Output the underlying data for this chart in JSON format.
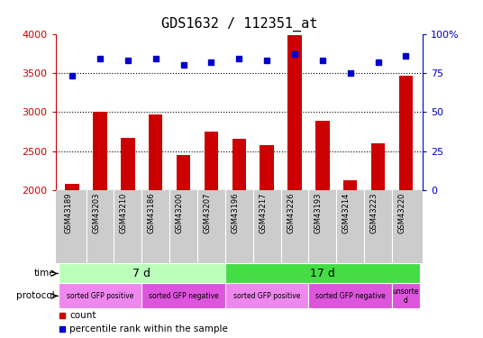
{
  "title": "GDS1632 / 112351_at",
  "samples": [
    "GSM43189",
    "GSM43203",
    "GSM43210",
    "GSM43186",
    "GSM43200",
    "GSM43207",
    "GSM43196",
    "GSM43217",
    "GSM43226",
    "GSM43193",
    "GSM43214",
    "GSM43223",
    "GSM43220"
  ],
  "counts": [
    2090,
    3000,
    2670,
    2970,
    2450,
    2750,
    2660,
    2580,
    3980,
    2890,
    2130,
    2600,
    3460
  ],
  "percentile_ranks": [
    73,
    84,
    83,
    84,
    80,
    82,
    84,
    83,
    87,
    83,
    75,
    82,
    86
  ],
  "bar_color": "#cc0000",
  "dot_color": "#0000cc",
  "ylim_left": [
    2000,
    4000
  ],
  "ylim_right": [
    0,
    100
  ],
  "yticks_left": [
    2000,
    2500,
    3000,
    3500,
    4000
  ],
  "yticks_right": [
    0,
    25,
    50,
    75,
    100
  ],
  "grid_lines": [
    2500,
    3000,
    3500
  ],
  "time_labels": [
    {
      "label": "7 d",
      "start": 0,
      "end": 5,
      "color": "#bbffbb"
    },
    {
      "label": "17 d",
      "start": 6,
      "end": 12,
      "color": "#44dd44"
    }
  ],
  "protocol_labels": [
    {
      "label": "sorted GFP positive",
      "start": 0,
      "end": 2,
      "color": "#ee88ee"
    },
    {
      "label": "sorted GFP negative",
      "start": 3,
      "end": 5,
      "color": "#dd55dd"
    },
    {
      "label": "sorted GFP positive",
      "start": 6,
      "end": 8,
      "color": "#ee88ee"
    },
    {
      "label": "sorted GFP negative",
      "start": 9,
      "end": 11,
      "color": "#dd55dd"
    },
    {
      "label": "unsorte\nd",
      "start": 12,
      "end": 12,
      "color": "#dd55dd"
    }
  ],
  "legend_items": [
    {
      "label": "count",
      "color": "#cc0000"
    },
    {
      "label": "percentile rank within the sample",
      "color": "#0000cc"
    }
  ],
  "title_fontsize": 11,
  "axis_label_color_left": "#cc0000",
  "axis_label_color_right": "#0000cc",
  "bg_color": "#ffffff",
  "plot_bg_color": "#ffffff",
  "sample_area_color": "#cccccc"
}
